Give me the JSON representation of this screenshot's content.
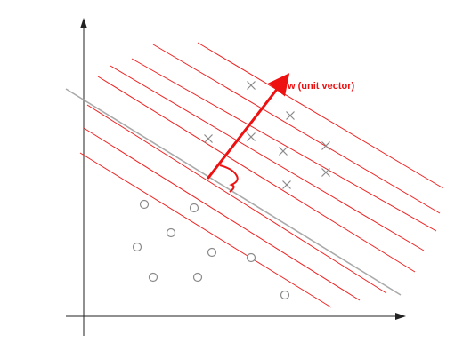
{
  "vector_label": "w (unit vector)",
  "colors": {
    "margin_lines": "#ee2222",
    "boundary": "#aaaaaa",
    "vector": "#ee1111",
    "points": "#8a8a8a",
    "axes": "#222222"
  },
  "classes": {
    "crosses_count": 8,
    "circles_count": 10
  }
}
